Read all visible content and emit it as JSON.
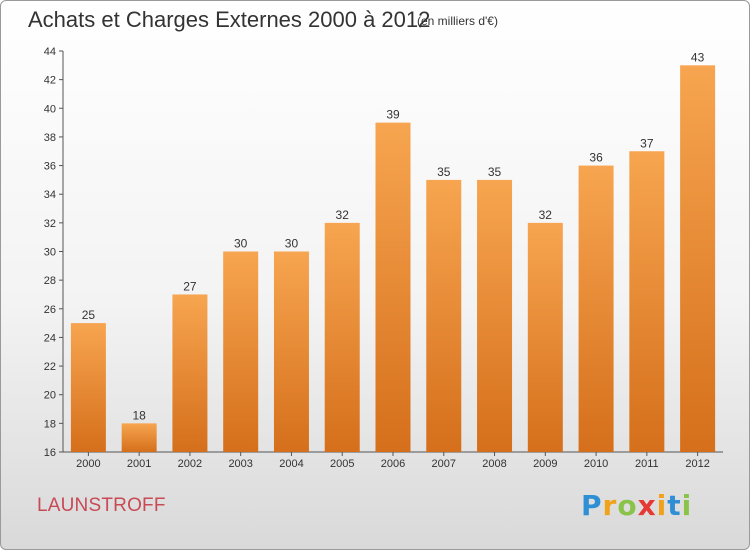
{
  "title": "Achats et Charges Externes 2000 à 2012",
  "subtitle": "(en milliers d'€)",
  "place": "LAUNSTROFF",
  "logo": {
    "letters": [
      "P",
      "r",
      "o",
      "x",
      "i",
      "t",
      "i"
    ]
  },
  "colors": {
    "bar_top": "#f7a550",
    "bar_bottom": "#d56f1b",
    "place": "#c84a55"
  },
  "chart_data": {
    "type": "bar",
    "title": "Achats et Charges Externes 2000 à 2012",
    "subtitle": "(en milliers d'€)",
    "categories": [
      "2000",
      "2001",
      "2002",
      "2003",
      "2004",
      "2005",
      "2006",
      "2007",
      "2008",
      "2009",
      "2010",
      "2011",
      "2012"
    ],
    "values": [
      25,
      18,
      27,
      30,
      30,
      32,
      39,
      35,
      35,
      32,
      36,
      37,
      43
    ],
    "xlabel": "",
    "ylabel": "",
    "ylim": [
      16,
      44
    ],
    "yticks": [
      16,
      18,
      20,
      22,
      24,
      26,
      28,
      30,
      32,
      34,
      36,
      38,
      40,
      42,
      44
    ],
    "grid": false,
    "legend": "none"
  }
}
